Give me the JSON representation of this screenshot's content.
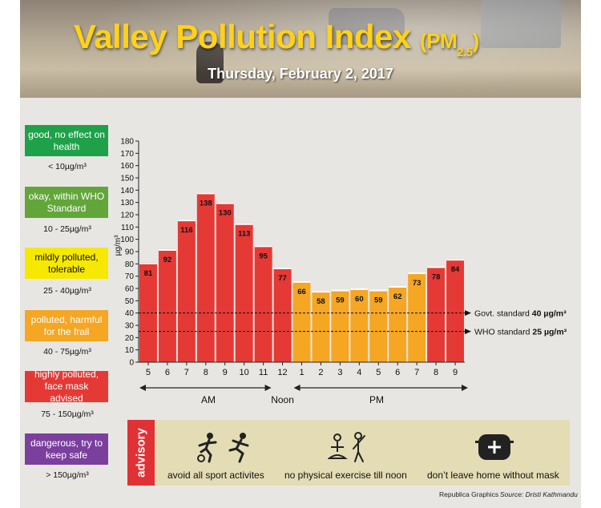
{
  "header": {
    "title_main": "Valley Pollution Index",
    "title_pm": "PM",
    "title_sub": "2.5",
    "date": "Thursday, February 2, 2017"
  },
  "legend": [
    {
      "label": "good, no effect on health",
      "range": "< 10µg/m³",
      "color": "#1fa14a"
    },
    {
      "label": "okay, within WHO Standard",
      "range": "10 - 25µg/m³",
      "color": "#62a63a"
    },
    {
      "label": "mildly polluted, tolerable",
      "range": "25 - 40µg/m³",
      "color": "#f6e800"
    },
    {
      "label": "polluted, harmful for the frail",
      "range": "40 - 75µg/m³",
      "color": "#f5a623"
    },
    {
      "label": "highly polluted, face mask advised",
      "range": "75 - 150µg/m³",
      "color": "#e53935"
    },
    {
      "label": "dangerous, try to keep safe",
      "range": "> 150µg/m³",
      "color": "#7b3f9e"
    }
  ],
  "chart_data": {
    "type": "bar",
    "categories": [
      "5",
      "6",
      "7",
      "8",
      "9",
      "10",
      "11",
      "12",
      "1",
      "2",
      "3",
      "4",
      "5",
      "6",
      "7",
      "8",
      "9"
    ],
    "values": [
      81,
      92,
      116,
      138,
      130,
      113,
      95,
      77,
      66,
      58,
      59,
      60,
      59,
      62,
      73,
      78,
      84
    ],
    "bar_colors": [
      "#e53935",
      "#e53935",
      "#e53935",
      "#e53935",
      "#e53935",
      "#e53935",
      "#e53935",
      "#e53935",
      "#f5a623",
      "#f5a623",
      "#f5a623",
      "#f5a623",
      "#f5a623",
      "#f5a623",
      "#f5a623",
      "#e53935",
      "#e53935"
    ],
    "ylabel": "µg/m³",
    "ylim": [
      0,
      180
    ],
    "yticks": [
      0,
      10,
      20,
      30,
      40,
      50,
      60,
      70,
      80,
      90,
      100,
      110,
      120,
      130,
      140,
      150,
      160,
      170,
      180
    ],
    "reference_lines": [
      {
        "label": "Govt. standard",
        "value_label": "40 µg/m³",
        "value": 40
      },
      {
        "label": "WHO standard",
        "value_label": "25 µg/m³",
        "value": 25
      }
    ],
    "period_labels": {
      "am": "AM",
      "noon": "Noon",
      "pm": "PM"
    }
  },
  "advisory": {
    "tag": "advisory",
    "items": [
      {
        "text": "avoid all sport activites",
        "icon": "sports-icon"
      },
      {
        "text": "no physical exercise till noon",
        "icon": "exercise-icon"
      },
      {
        "text": "don’t leave home without mask",
        "icon": "mask-icon"
      }
    ]
  },
  "credits": {
    "graphics": "Republica Graphics",
    "source": "Source: Dristi Kathmandu"
  }
}
